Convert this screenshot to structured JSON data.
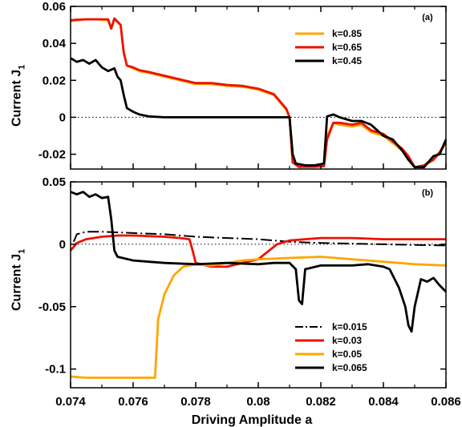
{
  "xlabel": "Driving Amplitude a",
  "x_ticks": [
    "0.074",
    "0.076",
    "0.078",
    "0.08",
    "0.082",
    "0.084",
    "0.086"
  ],
  "chart_data": [
    {
      "type": "line",
      "panel_label": "(a)",
      "ylabel": "Current J",
      "ylabel_sub": "1",
      "xlim": [
        0.074,
        0.086
      ],
      "ylim": [
        -0.028,
        0.06
      ],
      "y_ticks": [
        {
          "v": 0.06,
          "t": "0.06"
        },
        {
          "v": 0.04,
          "t": "0.04"
        },
        {
          "v": 0.02,
          "t": "0.02"
        },
        {
          "v": 0,
          "t": "0"
        },
        {
          "v": -0.02,
          "t": "-0.02"
        }
      ],
      "zero_line": true,
      "legend_position": "top-right",
      "series": [
        {
          "name": "k=0.85",
          "color": "#FFA500",
          "dash": "solid",
          "points": [
            [
              0.074,
              0.052
            ],
            [
              0.0742,
              0.0525
            ],
            [
              0.0745,
              0.053
            ],
            [
              0.0748,
              0.053
            ],
            [
              0.075,
              0.0528
            ],
            [
              0.0752,
              0.0525
            ],
            [
              0.0753,
              0.048
            ],
            [
              0.0754,
              0.053
            ],
            [
              0.0756,
              0.05
            ],
            [
              0.0757,
              0.035
            ],
            [
              0.0758,
              0.028
            ],
            [
              0.076,
              0.0265
            ],
            [
              0.0762,
              0.025
            ],
            [
              0.0765,
              0.024
            ],
            [
              0.077,
              0.022
            ],
            [
              0.0775,
              0.02
            ],
            [
              0.078,
              0.018
            ],
            [
              0.0785,
              0.018
            ],
            [
              0.079,
              0.017
            ],
            [
              0.0795,
              0.0165
            ],
            [
              0.08,
              0.015
            ],
            [
              0.0805,
              0.012
            ],
            [
              0.0809,
              0.004
            ],
            [
              0.081,
              0.0
            ],
            [
              0.0811,
              -0.024
            ],
            [
              0.0813,
              -0.027
            ],
            [
              0.0815,
              -0.0265
            ],
            [
              0.0818,
              -0.0265
            ],
            [
              0.0821,
              -0.026
            ],
            [
              0.0822,
              -0.01
            ],
            [
              0.0824,
              -0.003
            ],
            [
              0.0826,
              -0.004
            ],
            [
              0.083,
              -0.005
            ],
            [
              0.0833,
              -0.004
            ],
            [
              0.0836,
              -0.008
            ],
            [
              0.084,
              -0.01
            ],
            [
              0.0843,
              -0.014
            ],
            [
              0.0846,
              -0.018
            ],
            [
              0.0848,
              -0.022
            ],
            [
              0.085,
              -0.027
            ],
            [
              0.0853,
              -0.026
            ],
            [
              0.0856,
              -0.022
            ],
            [
              0.0858,
              -0.019
            ],
            [
              0.086,
              -0.014
            ]
          ]
        },
        {
          "name": "k=0.65",
          "color": "#EE1100",
          "dash": "solid",
          "points": [
            [
              0.074,
              0.0525
            ],
            [
              0.0742,
              0.0528
            ],
            [
              0.0745,
              0.053
            ],
            [
              0.0748,
              0.053
            ],
            [
              0.075,
              0.053
            ],
            [
              0.0752,
              0.053
            ],
            [
              0.0753,
              0.048
            ],
            [
              0.0754,
              0.0535
            ],
            [
              0.0756,
              0.05
            ],
            [
              0.0757,
              0.035
            ],
            [
              0.0758,
              0.028
            ],
            [
              0.076,
              0.027
            ],
            [
              0.0762,
              0.0255
            ],
            [
              0.0765,
              0.0245
            ],
            [
              0.077,
              0.0225
            ],
            [
              0.0775,
              0.0205
            ],
            [
              0.078,
              0.0185
            ],
            [
              0.0785,
              0.0185
            ],
            [
              0.079,
              0.0175
            ],
            [
              0.0795,
              0.017
            ],
            [
              0.08,
              0.0155
            ],
            [
              0.0805,
              0.0125
            ],
            [
              0.0809,
              0.0045
            ],
            [
              0.081,
              0.0
            ],
            [
              0.0811,
              -0.0245
            ],
            [
              0.0813,
              -0.0268
            ],
            [
              0.0815,
              -0.0268
            ],
            [
              0.0818,
              -0.0268
            ],
            [
              0.0821,
              -0.0265
            ],
            [
              0.0822,
              -0.012
            ],
            [
              0.0824,
              -0.003
            ],
            [
              0.0826,
              -0.003
            ],
            [
              0.083,
              -0.004
            ],
            [
              0.0833,
              -0.003
            ],
            [
              0.0836,
              -0.007
            ],
            [
              0.084,
              -0.009
            ],
            [
              0.0843,
              -0.013
            ],
            [
              0.0846,
              -0.017
            ],
            [
              0.0848,
              -0.021
            ],
            [
              0.085,
              -0.027
            ],
            [
              0.0853,
              -0.026
            ],
            [
              0.0856,
              -0.023
            ],
            [
              0.0858,
              -0.019
            ],
            [
              0.086,
              -0.013
            ]
          ]
        },
        {
          "name": "k=0.45",
          "color": "#000000",
          "dash": "solid",
          "points": [
            [
              0.074,
              0.032
            ],
            [
              0.0742,
              0.03
            ],
            [
              0.0744,
              0.031
            ],
            [
              0.0746,
              0.029
            ],
            [
              0.0748,
              0.031
            ],
            [
              0.075,
              0.027
            ],
            [
              0.0752,
              0.025
            ],
            [
              0.0754,
              0.0265
            ],
            [
              0.0755,
              0.022
            ],
            [
              0.0756,
              0.02
            ],
            [
              0.0757,
              0.012
            ],
            [
              0.0758,
              0.005
            ],
            [
              0.076,
              0.003
            ],
            [
              0.0762,
              0.0015
            ],
            [
              0.0765,
              0.0005
            ],
            [
              0.077,
              0.0
            ],
            [
              0.078,
              0.0
            ],
            [
              0.081,
              0.0
            ],
            [
              0.0811,
              -0.02
            ],
            [
              0.0812,
              -0.025
            ],
            [
              0.0815,
              -0.026
            ],
            [
              0.0818,
              -0.026
            ],
            [
              0.0821,
              -0.025
            ],
            [
              0.0822,
              0.0005
            ],
            [
              0.0824,
              0.0015
            ],
            [
              0.0826,
              0.0
            ],
            [
              0.083,
              -0.002
            ],
            [
              0.0833,
              -0.002
            ],
            [
              0.0836,
              -0.004
            ],
            [
              0.084,
              -0.01
            ],
            [
              0.0843,
              -0.012
            ],
            [
              0.0846,
              -0.018
            ],
            [
              0.0848,
              -0.023
            ],
            [
              0.085,
              -0.027
            ],
            [
              0.0853,
              -0.027
            ],
            [
              0.0856,
              -0.021
            ],
            [
              0.0858,
              -0.02
            ],
            [
              0.086,
              -0.012
            ]
          ]
        }
      ]
    },
    {
      "type": "line",
      "panel_label": "(b)",
      "ylabel": "Current J",
      "ylabel_sub": "1",
      "xlim": [
        0.074,
        0.086
      ],
      "ylim": [
        -0.115,
        0.05
      ],
      "y_ticks": [
        {
          "v": 0.05,
          "t": "0.05"
        },
        {
          "v": 0,
          "t": "0"
        },
        {
          "v": -0.05,
          "t": "-0.05"
        },
        {
          "v": -0.1,
          "t": "-0.1"
        }
      ],
      "zero_line": true,
      "legend_position": "bottom-right",
      "series": [
        {
          "name": "k=0.015",
          "color": "#000000",
          "dash": "dashdot",
          "points": [
            [
              0.0741,
              0.002
            ],
            [
              0.0742,
              0.008
            ],
            [
              0.0745,
              0.01
            ],
            [
              0.075,
              0.01
            ],
            [
              0.076,
              0.009
            ],
            [
              0.077,
              0.008
            ],
            [
              0.078,
              0.006
            ],
            [
              0.079,
              0.005
            ],
            [
              0.08,
              0.004
            ],
            [
              0.081,
              0.002
            ],
            [
              0.082,
              0.001
            ],
            [
              0.083,
              0.0005
            ],
            [
              0.084,
              0.0
            ],
            [
              0.085,
              -0.0005
            ],
            [
              0.086,
              -0.001
            ]
          ]
        },
        {
          "name": "k=0.03",
          "color": "#EE1100",
          "dash": "solid",
          "points": [
            [
              0.074,
              -0.005
            ],
            [
              0.0742,
              0.001
            ],
            [
              0.0745,
              0.004
            ],
            [
              0.075,
              0.006
            ],
            [
              0.0755,
              0.007
            ],
            [
              0.076,
              0.007
            ],
            [
              0.077,
              0.006
            ],
            [
              0.0775,
              0.005
            ],
            [
              0.0778,
              0.004
            ],
            [
              0.0779,
              -0.005
            ],
            [
              0.078,
              -0.015
            ],
            [
              0.0785,
              -0.018
            ],
            [
              0.079,
              -0.018
            ],
            [
              0.0795,
              -0.015
            ],
            [
              0.08,
              -0.012
            ],
            [
              0.0803,
              -0.006
            ],
            [
              0.0806,
              0.0
            ],
            [
              0.081,
              0.003
            ],
            [
              0.0815,
              0.004
            ],
            [
              0.082,
              0.005
            ],
            [
              0.083,
              0.005
            ],
            [
              0.084,
              0.004
            ],
            [
              0.085,
              0.004
            ],
            [
              0.086,
              0.004
            ]
          ]
        },
        {
          "name": "k=0.05",
          "color": "#FFA500",
          "dash": "solid",
          "points": [
            [
              0.074,
              -0.106
            ],
            [
              0.0745,
              -0.107
            ],
            [
              0.075,
              -0.107
            ],
            [
              0.076,
              -0.107
            ],
            [
              0.0767,
              -0.107
            ],
            [
              0.0768,
              -0.06
            ],
            [
              0.077,
              -0.04
            ],
            [
              0.0773,
              -0.025
            ],
            [
              0.0776,
              -0.018
            ],
            [
              0.078,
              -0.016
            ],
            [
              0.0785,
              -0.017
            ],
            [
              0.079,
              -0.015
            ],
            [
              0.0795,
              -0.013
            ],
            [
              0.08,
              -0.012
            ],
            [
              0.081,
              -0.011
            ],
            [
              0.082,
              -0.01
            ],
            [
              0.083,
              -0.012
            ],
            [
              0.084,
              -0.014
            ],
            [
              0.085,
              -0.016
            ],
            [
              0.086,
              -0.017
            ]
          ]
        },
        {
          "name": "k=0.065",
          "color": "#000000",
          "dash": "solid",
          "points": [
            [
              0.074,
              0.042
            ],
            [
              0.0742,
              0.04
            ],
            [
              0.0744,
              0.042
            ],
            [
              0.0746,
              0.038
            ],
            [
              0.0748,
              0.04
            ],
            [
              0.075,
              0.037
            ],
            [
              0.0752,
              0.038
            ],
            [
              0.0753,
              0.02
            ],
            [
              0.0754,
              -0.005
            ],
            [
              0.0755,
              -0.01
            ],
            [
              0.076,
              -0.013
            ],
            [
              0.0765,
              -0.014
            ],
            [
              0.077,
              -0.015
            ],
            [
              0.078,
              -0.016
            ],
            [
              0.079,
              -0.015
            ],
            [
              0.08,
              -0.016
            ],
            [
              0.0805,
              -0.015
            ],
            [
              0.081,
              -0.015
            ],
            [
              0.0812,
              -0.02
            ],
            [
              0.0813,
              -0.045
            ],
            [
              0.0814,
              -0.048
            ],
            [
              0.0815,
              -0.02
            ],
            [
              0.082,
              -0.017
            ],
            [
              0.083,
              -0.017
            ],
            [
              0.0835,
              -0.016
            ],
            [
              0.084,
              -0.018
            ],
            [
              0.0842,
              -0.02
            ],
            [
              0.0845,
              -0.035
            ],
            [
              0.0847,
              -0.05
            ],
            [
              0.0848,
              -0.065
            ],
            [
              0.0849,
              -0.07
            ],
            [
              0.085,
              -0.05
            ],
            [
              0.0852,
              -0.028
            ],
            [
              0.0854,
              -0.03
            ],
            [
              0.0856,
              -0.027
            ],
            [
              0.0858,
              -0.033
            ],
            [
              0.086,
              -0.038
            ]
          ]
        }
      ]
    }
  ]
}
